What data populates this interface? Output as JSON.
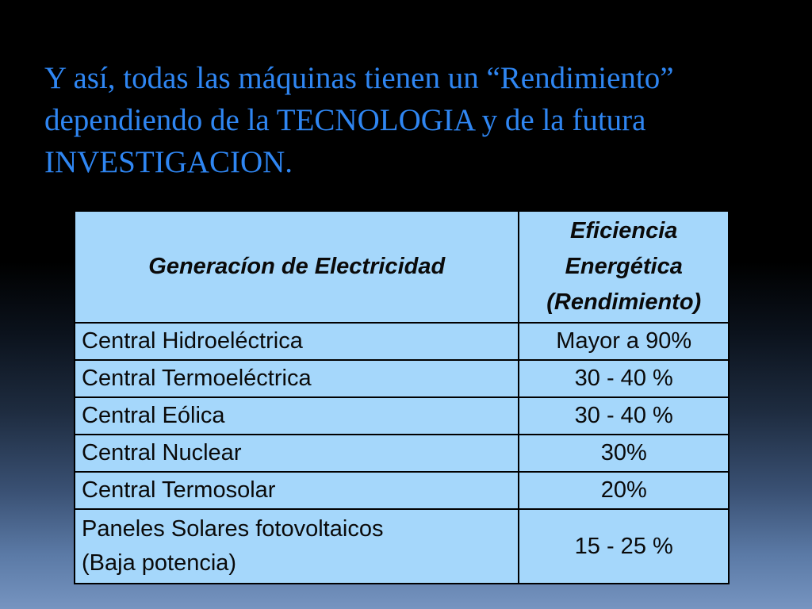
{
  "slide": {
    "title_lines": [
      "Y así, todas las máquinas tienen un “Rendimiento”",
      "dependiendo de la TECNOLOGIA y de la futura",
      "INVESTIGACION."
    ]
  },
  "table": {
    "headers": {
      "generation": "Generacíon de Electricidad",
      "efficiency_lines": [
        "Eficiencia",
        "Energética",
        "(Rendimiento)"
      ]
    },
    "rows": [
      {
        "generation": "Central Hidroeléctrica",
        "efficiency": "Mayor a 90%"
      },
      {
        "generation": "Central Termoeléctrica",
        "efficiency": "30 - 40 %"
      },
      {
        "generation": "Central Eólica",
        "efficiency": "30 - 40 %"
      },
      {
        "generation": "Central Nuclear",
        "efficiency": "30%"
      },
      {
        "generation": "Central Termosolar",
        "efficiency": "20%"
      },
      {
        "generation_lines": [
          "Paneles Solares fotovoltaicos",
          "(Baja potencia)"
        ],
        "efficiency": "15 - 25 %"
      }
    ]
  },
  "colors": {
    "title_text": "#2f86f2",
    "table_fill": "#a5d7fb",
    "table_border": "#000000",
    "background_top": "#000000",
    "background_bottom": "#7694c0"
  }
}
